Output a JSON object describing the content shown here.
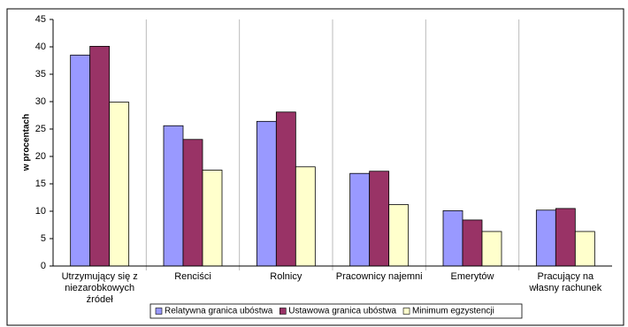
{
  "chart_data": {
    "type": "bar",
    "y_label": "w procentach",
    "categories": [
      "Utrzymujący się z niezarobkowych źródeł",
      "Renciści",
      "Rolnicy",
      "Pracownicy najemni",
      "Emerytów",
      "Pracujący na własny rachunek"
    ],
    "series": [
      {
        "name": "Relatywna granica ubóstwa",
        "color": "#9999ff",
        "values": [
          38.5,
          25.6,
          26.4,
          16.9,
          10.1,
          10.2
        ]
      },
      {
        "name": "Ustawowa granica ubóstwa",
        "color": "#993366",
        "values": [
          40.1,
          23.1,
          28.1,
          17.3,
          8.4,
          10.5
        ]
      },
      {
        "name": "Minimum egzystencji",
        "color": "#ffffcc",
        "values": [
          29.9,
          17.5,
          18.1,
          11.2,
          6.3,
          6.3
        ]
      }
    ],
    "ylim": [
      0,
      45
    ],
    "yticks": [
      0,
      5,
      10,
      15,
      20,
      25,
      30,
      35,
      40,
      45
    ],
    "grid": false,
    "legend": "bottom"
  }
}
